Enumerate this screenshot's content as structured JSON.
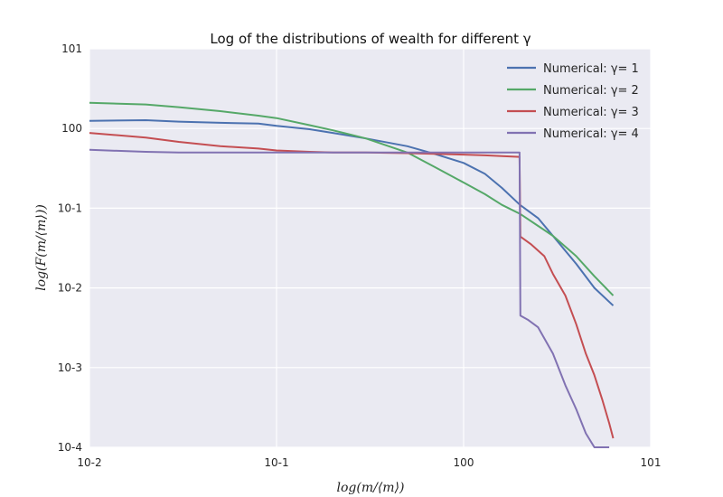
{
  "chart_data": {
    "type": "line",
    "title": "Log of the distributions of wealth for different γ",
    "xlabel": "log(m/⟨m⟩)",
    "ylabel": "log(F(m/⟨m⟩))",
    "xscale": "log",
    "yscale": "log",
    "xlim": [
      0.01,
      10
    ],
    "ylim": [
      0.0001,
      10
    ],
    "grid": true,
    "legend_position": "top-right",
    "x_ticks": [
      "10-2",
      "10-1",
      "100",
      "101"
    ],
    "y_ticks": [
      "10-4",
      "10-3",
      "10-2",
      "10-1",
      "100",
      "101"
    ],
    "series": [
      {
        "name": "Numerical: γ= 1",
        "color": "#4c72b0",
        "x": [
          0.01,
          0.02,
          0.03,
          0.05,
          0.08,
          0.1,
          0.15,
          0.2,
          0.3,
          0.5,
          0.7,
          1.0,
          1.3,
          1.6,
          2.0,
          2.5,
          3.0,
          4.0,
          5.0,
          6.3
        ],
        "y": [
          1.25,
          1.27,
          1.22,
          1.18,
          1.15,
          1.08,
          0.98,
          0.88,
          0.75,
          0.6,
          0.48,
          0.37,
          0.27,
          0.18,
          0.11,
          0.075,
          0.045,
          0.02,
          0.01,
          0.006
        ]
      },
      {
        "name": "Numerical: γ= 2",
        "color": "#55a868",
        "x": [
          0.01,
          0.02,
          0.03,
          0.05,
          0.08,
          0.1,
          0.15,
          0.2,
          0.3,
          0.5,
          0.7,
          1.0,
          1.3,
          1.6,
          2.0,
          2.5,
          3.0,
          4.0,
          5.0,
          6.3
        ],
        "y": [
          2.1,
          2.0,
          1.85,
          1.65,
          1.45,
          1.35,
          1.1,
          0.95,
          0.75,
          0.5,
          0.33,
          0.21,
          0.15,
          0.11,
          0.085,
          0.06,
          0.045,
          0.025,
          0.014,
          0.008
        ]
      },
      {
        "name": "Numerical: γ= 3",
        "color": "#c44e52",
        "x": [
          0.01,
          0.02,
          0.03,
          0.05,
          0.08,
          0.1,
          0.15,
          0.2,
          0.3,
          0.5,
          0.7,
          1.0,
          1.3,
          1.6,
          1.99,
          2.01,
          2.3,
          2.7,
          3.0,
          3.5,
          4.0,
          4.5,
          5.0,
          5.5,
          6.0,
          6.3
        ],
        "y": [
          0.88,
          0.77,
          0.68,
          0.6,
          0.56,
          0.53,
          0.51,
          0.5,
          0.5,
          0.49,
          0.48,
          0.47,
          0.46,
          0.45,
          0.44,
          0.044,
          0.035,
          0.025,
          0.015,
          0.008,
          0.0035,
          0.0015,
          0.0008,
          0.0004,
          0.0002,
          0.00013
        ]
      },
      {
        "name": "Numerical: γ= 4",
        "color": "#8172b2",
        "x": [
          0.01,
          0.02,
          0.03,
          0.05,
          0.08,
          0.1,
          0.15,
          0.2,
          0.3,
          0.5,
          0.7,
          1.0,
          1.3,
          1.6,
          1.99,
          2.01,
          2.2,
          2.5,
          3.0,
          3.5,
          4.0,
          4.5,
          5.0,
          6.0
        ],
        "y": [
          0.54,
          0.51,
          0.5,
          0.5,
          0.5,
          0.5,
          0.5,
          0.5,
          0.5,
          0.5,
          0.5,
          0.5,
          0.5,
          0.5,
          0.5,
          0.0045,
          0.004,
          0.0032,
          0.0015,
          0.0006,
          0.0003,
          0.00015,
          0.0001,
          0.0001
        ]
      }
    ]
  }
}
